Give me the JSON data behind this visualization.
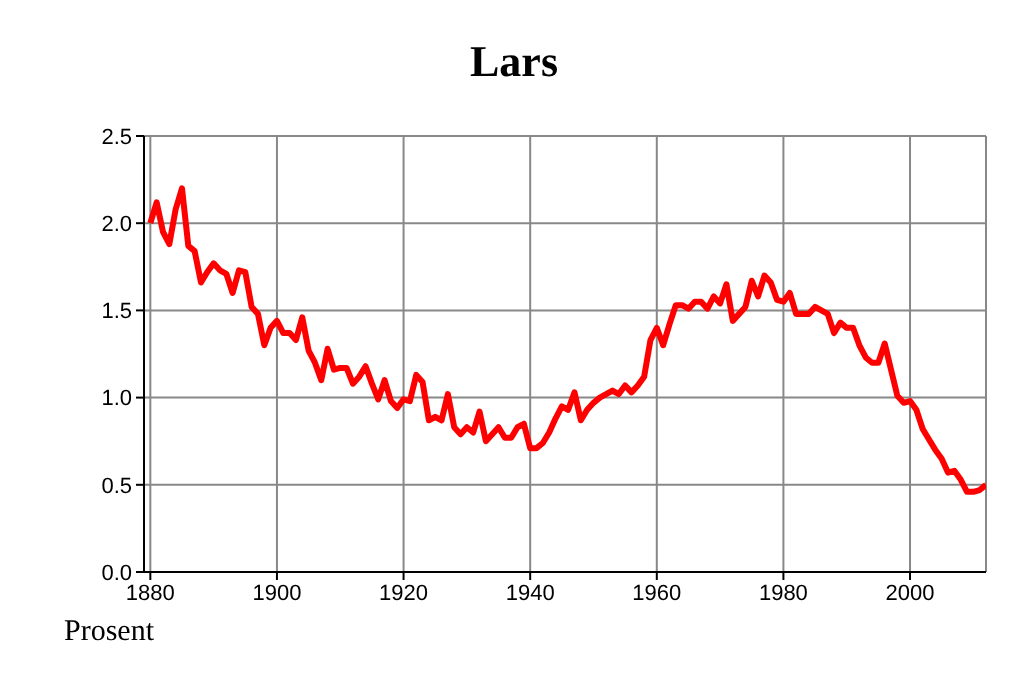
{
  "chart_data": {
    "type": "line",
    "title": "Lars",
    "annotations": [
      "Prosent"
    ],
    "x": [
      1880,
      1881,
      1882,
      1883,
      1884,
      1885,
      1886,
      1887,
      1888,
      1889,
      1890,
      1891,
      1892,
      1893,
      1894,
      1895,
      1896,
      1897,
      1898,
      1899,
      1900,
      1901,
      1902,
      1903,
      1904,
      1905,
      1906,
      1907,
      1908,
      1909,
      1910,
      1911,
      1912,
      1913,
      1914,
      1915,
      1916,
      1917,
      1918,
      1919,
      1920,
      1921,
      1922,
      1923,
      1924,
      1925,
      1926,
      1927,
      1928,
      1929,
      1930,
      1931,
      1932,
      1933,
      1934,
      1935,
      1936,
      1937,
      1938,
      1939,
      1940,
      1941,
      1942,
      1943,
      1944,
      1945,
      1946,
      1947,
      1948,
      1949,
      1950,
      1951,
      1952,
      1953,
      1954,
      1955,
      1956,
      1957,
      1958,
      1959,
      1960,
      1961,
      1962,
      1963,
      1964,
      1965,
      1966,
      1967,
      1968,
      1969,
      1970,
      1971,
      1972,
      1973,
      1974,
      1975,
      1976,
      1977,
      1978,
      1979,
      1980,
      1981,
      1982,
      1983,
      1984,
      1985,
      1986,
      1987,
      1988,
      1989,
      1990,
      1991,
      1992,
      1993,
      1994,
      1995,
      1996,
      1997,
      1998,
      1999,
      2000,
      2001,
      2002,
      2003,
      2004,
      2005,
      2006,
      2007,
      2008,
      2009,
      2010,
      2011,
      2012
    ],
    "series": [
      {
        "color": "#ff0000",
        "values": [
          2.0,
          2.12,
          1.95,
          1.88,
          2.08,
          2.2,
          1.87,
          1.84,
          1.66,
          1.72,
          1.77,
          1.73,
          1.71,
          1.6,
          1.73,
          1.72,
          1.52,
          1.48,
          1.3,
          1.4,
          1.44,
          1.37,
          1.37,
          1.33,
          1.46,
          1.27,
          1.2,
          1.1,
          1.28,
          1.16,
          1.17,
          1.17,
          1.08,
          1.12,
          1.18,
          1.08,
          0.99,
          1.1,
          0.98,
          0.94,
          0.99,
          0.98,
          1.13,
          1.09,
          0.87,
          0.89,
          0.87,
          1.02,
          0.83,
          0.79,
          0.83,
          0.8,
          0.92,
          0.75,
          0.79,
          0.83,
          0.77,
          0.77,
          0.83,
          0.85,
          0.71,
          0.71,
          0.74,
          0.8,
          0.88,
          0.95,
          0.93,
          1.03,
          0.87,
          0.93,
          0.97,
          1.0,
          1.02,
          1.04,
          1.02,
          1.07,
          1.03,
          1.07,
          1.12,
          1.33,
          1.4,
          1.3,
          1.42,
          1.53,
          1.53,
          1.51,
          1.55,
          1.55,
          1.51,
          1.58,
          1.54,
          1.65,
          1.44,
          1.48,
          1.52,
          1.67,
          1.58,
          1.7,
          1.66,
          1.56,
          1.55,
          1.6,
          1.48,
          1.48,
          1.48,
          1.52,
          1.5,
          1.48,
          1.37,
          1.43,
          1.4,
          1.4,
          1.3,
          1.23,
          1.2,
          1.2,
          1.31,
          1.16,
          1.01,
          0.97,
          0.98,
          0.93,
          0.82,
          0.76,
          0.7,
          0.65,
          0.57,
          0.58,
          0.53,
          0.46,
          0.46,
          0.47,
          0.5
        ]
      }
    ],
    "xlim": [
      1879,
      2012
    ],
    "xticks": [
      1880,
      1900,
      1920,
      1940,
      1960,
      1980,
      2000
    ],
    "ylim": [
      0,
      2.5
    ],
    "yticks": [
      {
        "value": 0,
        "label": "0.0"
      },
      {
        "value": 0.5,
        "label": "0.5"
      },
      {
        "value": 1,
        "label": "1.0"
      },
      {
        "value": 1.5,
        "label": "1.5"
      },
      {
        "value": 2,
        "label": "2.0"
      },
      {
        "value": 2.5,
        "label": "2.5"
      }
    ],
    "grid": true,
    "line_style": "solid",
    "marker": "none"
  }
}
